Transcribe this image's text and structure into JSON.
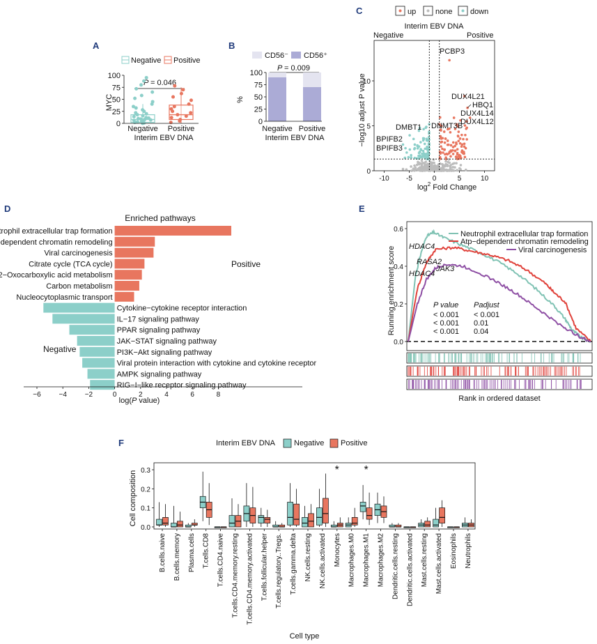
{
  "colors": {
    "teal": "#8ccfc9",
    "coral": "#e8765f",
    "lilac": "#ababd6",
    "pale": "#e4e4f0",
    "purple": "#8e4fa4",
    "gray": "#bcbcbc",
    "navy": "#1f3a7a"
  },
  "panels": {
    "A": "A",
    "B": "B",
    "C": "C",
    "D": "D",
    "E": "E",
    "F": "F"
  },
  "chart_data": [
    {
      "id": "A",
      "type": "box",
      "legend": [
        "Negative",
        "Positive"
      ],
      "ylabel": "MYC",
      "xlabel": "Interim EBV DNA",
      "yticks": [
        "0",
        "25",
        "50",
        "75",
        "100"
      ],
      "ylim": [
        0,
        100
      ],
      "categories": [
        "Negative",
        "Positive"
      ],
      "p_label": "P",
      "p_value": "= 0.046",
      "boxes": [
        {
          "q1": 2,
          "median": 8,
          "q3": 18,
          "lo": 0,
          "hi": 40,
          "points": [
            0,
            1,
            2,
            3,
            4,
            5,
            6,
            7,
            8,
            9,
            10,
            11,
            12,
            14,
            16,
            18,
            20,
            22,
            25,
            28,
            32,
            35,
            40,
            45,
            52,
            58,
            65,
            72,
            80,
            88,
            95
          ]
        },
        {
          "q1": 8,
          "median": 18,
          "q3": 38,
          "lo": 0,
          "hi": 75,
          "points": [
            2,
            5,
            8,
            12,
            15,
            18,
            22,
            25,
            30,
            35,
            40,
            48,
            55,
            62,
            70,
            78
          ]
        }
      ]
    },
    {
      "id": "B",
      "type": "stacked_bar",
      "legend": [
        "CD56⁻",
        "CD56⁺"
      ],
      "ylabel": "%",
      "xlabel": "Interim EBV DNA",
      "yticks": [
        "0",
        "25",
        "50",
        "75",
        "100"
      ],
      "ylim": [
        0,
        100
      ],
      "categories": [
        "Negative",
        "Positive"
      ],
      "series": [
        {
          "name": "CD56+",
          "values": [
            90,
            70
          ]
        },
        {
          "name": "CD56-",
          "values": [
            10,
            30
          ]
        }
      ],
      "p_label": "P",
      "p_value": "= 0.009"
    },
    {
      "id": "C",
      "type": "scatter",
      "legend": [
        "up",
        "none",
        "down"
      ],
      "title": "Interim EBV DNA",
      "left_label": "Negative",
      "right_label": "Positive",
      "ylabel": "−log10 adjust P value",
      "xlabel_main": "log",
      "xlabel_sup": "2",
      "xlabel_rest": " Fold Change",
      "xticks": [
        "-10",
        "-5",
        "0",
        "5",
        "10"
      ],
      "yticks": [
        "0",
        "5",
        "10"
      ],
      "xlim": [
        -12,
        12
      ],
      "ylim": [
        0,
        14.5
      ],
      "annotations": [
        "PCBP3",
        "DUX4L21",
        "HBQ1",
        "DUX4L14",
        "DUX4L12",
        "DMBT1",
        "DNMT3B",
        "BPIFB2",
        "BPIFB3"
      ]
    },
    {
      "id": "D",
      "type": "bar_horizontal",
      "title": "Enriched pathways",
      "xlabel": "log(P value)",
      "xlabel_pre": "log(",
      "xlabel_p": "P",
      "xlabel_post": " value)",
      "xticks": [
        "−6",
        "−4",
        "−2",
        "0",
        "2",
        "4",
        "6",
        "8"
      ],
      "xlim": [
        -6.3,
        9.5
      ],
      "group_positive": "Positive",
      "group_negative": "Negative",
      "categories": [
        "Neutrophil extracellular trap formation",
        "ATP−dependent chromatin remodeling",
        "Viral carcinogenesis",
        "Citrate cycle (TCA cycle)",
        "2−Oxocarboxylic acid metabolism",
        "Carbon metabolism",
        "Nucleocytoplasmic transport",
        "Cytokine−cytokine receptor interaction",
        "IL−17 signaling pathway",
        "PPAR signaling pathway",
        "JAK−STAT signaling pathway",
        "PI3K−Akt signaling pathway",
        "Viral protein interaction with cytokine and cytokine receptor",
        "AMPK signaling pathway",
        "RIG−I−like receptor signaling pathway"
      ],
      "values": [
        9.0,
        3.1,
        3.0,
        2.3,
        2.1,
        1.9,
        1.5,
        -5.5,
        -4.8,
        -3.5,
        -2.9,
        -2.7,
        -2.5,
        -2.1,
        -1.9
      ]
    },
    {
      "id": "E",
      "type": "line",
      "legend": [
        "Neutrophil extracellular trap formation",
        "Atp−dependent chromatin remodeling",
        "Viral carcinogenesis"
      ],
      "ylabel": "Running enrichment score",
      "xlabel": "Rank in ordered dataset",
      "yticks": [
        "0.0",
        "0.2",
        "0.4",
        "0.6"
      ],
      "ylim": [
        -0.06,
        0.66
      ],
      "genes": [
        "HDAC4",
        "RASA2",
        "HDAC4",
        "JAK3"
      ],
      "stats_header": [
        "P value",
        "Padjust"
      ],
      "stats_rows": [
        [
          "< 0.001",
          "< 0.001"
        ],
        [
          "< 0.001",
          "0.01"
        ],
        [
          "< 0.001",
          "0.04"
        ]
      ],
      "series": [
        {
          "name": "Neutrophil extracellular trap formation",
          "x": [
            0,
            0.04,
            0.07,
            0.1,
            0.14,
            0.2,
            0.3,
            0.4,
            0.5,
            0.6,
            0.7,
            0.8,
            0.86,
            0.9,
            0.95,
            1.0
          ],
          "values": [
            0,
            0.35,
            0.47,
            0.56,
            0.58,
            0.55,
            0.51,
            0.47,
            0.42,
            0.36,
            0.28,
            0.19,
            0.12,
            0.06,
            0.02,
            0
          ]
        },
        {
          "name": "Atp−dependent chromatin remodeling",
          "x": [
            0,
            0.05,
            0.1,
            0.15,
            0.25,
            0.35,
            0.45,
            0.55,
            0.65,
            0.75,
            0.8,
            0.86,
            0.92,
            1.0
          ],
          "values": [
            0,
            0.28,
            0.42,
            0.49,
            0.5,
            0.48,
            0.46,
            0.43,
            0.38,
            0.31,
            0.26,
            0.21,
            0.07,
            0
          ]
        },
        {
          "name": "Viral carcinogenesis",
          "x": [
            0,
            0.05,
            0.1,
            0.15,
            0.2,
            0.3,
            0.4,
            0.5,
            0.6,
            0.7,
            0.8,
            0.88,
            0.95,
            1.0
          ],
          "values": [
            0,
            0.2,
            0.33,
            0.39,
            0.41,
            0.4,
            0.36,
            0.31,
            0.25,
            0.18,
            0.11,
            0.06,
            0.02,
            0
          ]
        }
      ]
    },
    {
      "id": "F",
      "type": "box",
      "legend_title": "Interim EBV DNA",
      "legend": [
        "Negative",
        "Positive"
      ],
      "ylabel": "Cell composition",
      "xlabel": "Cell type",
      "yticks": [
        "0.0",
        "0.1",
        "0.2",
        "0.3"
      ],
      "ylim": [
        0,
        0.33
      ],
      "significant": [
        "Monocytes",
        "Macrophages.M1"
      ],
      "sig_marker": "*",
      "categories": [
        "B.cells.naive",
        "B.cells.memory",
        "Plasma.cells",
        "T.cells.CD8",
        "T.cells.CD4.naive",
        "T.cells.CD4.memory.resting",
        "T.cells.CD4.memory.activated",
        "T.cells.follicular.helper",
        "T.cells.regulatory..Tregs.",
        "T.cells.gamma.delta",
        "NK.cells.resting",
        "NK.cells.activated",
        "Monocytes",
        "Macrophages.M0",
        "Macrophages.M1",
        "Macrophages.M2",
        "Dendritic.cells.resting",
        "Dendritic.cells.activated",
        "Mast.cells.resting",
        "Mast.cells.activated",
        "Eosinophils",
        "Neutrophils"
      ],
      "series": [
        {
          "name": "Negative",
          "boxes": [
            [
              0.01,
              0.04,
              0.01,
              0.0,
              0.13
            ],
            [
              0.0,
              0.02,
              0.0,
              0.0,
              0.11
            ],
            [
              0.0,
              0.01,
              0.0,
              0.0,
              0.02
            ],
            [
              0.1,
              0.16,
              0.13,
              0.03,
              0.29
            ],
            [
              0.0,
              0.0,
              0.0,
              0.0,
              0.0
            ],
            [
              0.0,
              0.06,
              0.02,
              0.0,
              0.15
            ],
            [
              0.03,
              0.11,
              0.07,
              0.0,
              0.23
            ],
            [
              0.02,
              0.06,
              0.05,
              0.0,
              0.1
            ],
            [
              0.0,
              0.01,
              0.0,
              0.0,
              0.03
            ],
            [
              0.01,
              0.13,
              0.05,
              0.0,
              0.23
            ],
            [
              0.0,
              0.05,
              0.02,
              0.0,
              0.11
            ],
            [
              0.01,
              0.1,
              0.05,
              0.0,
              0.2
            ],
            [
              0.0,
              0.01,
              0.0,
              0.0,
              0.03
            ],
            [
              0.0,
              0.02,
              0.01,
              0.0,
              0.05
            ],
            [
              0.08,
              0.13,
              0.11,
              0.04,
              0.22
            ],
            [
              0.06,
              0.12,
              0.09,
              0.02,
              0.18
            ],
            [
              0.0,
              0.01,
              0.0,
              0.0,
              0.02
            ],
            [
              0.0,
              0.0,
              0.0,
              0.0,
              0.0
            ],
            [
              0.0,
              0.02,
              0.01,
              0.0,
              0.04
            ],
            [
              0.0,
              0.04,
              0.01,
              0.0,
              0.1
            ],
            [
              0.0,
              0.0,
              0.0,
              0.0,
              0.0
            ],
            [
              0.0,
              0.02,
              0.01,
              0.0,
              0.05
            ]
          ]
        },
        {
          "name": "Positive",
          "boxes": [
            [
              0.01,
              0.05,
              0.02,
              0.0,
              0.12
            ],
            [
              0.0,
              0.03,
              0.01,
              0.0,
              0.08
            ],
            [
              0.01,
              0.02,
              0.01,
              0.0,
              0.04
            ],
            [
              0.05,
              0.13,
              0.09,
              0.01,
              0.23
            ],
            [
              0.0,
              0.0,
              0.0,
              0.0,
              0.0
            ],
            [
              0.0,
              0.06,
              0.03,
              0.0,
              0.12
            ],
            [
              0.02,
              0.1,
              0.06,
              0.0,
              0.21
            ],
            [
              0.02,
              0.05,
              0.04,
              0.0,
              0.09
            ],
            [
              0.0,
              0.01,
              0.0,
              0.0,
              0.02
            ],
            [
              0.01,
              0.12,
              0.04,
              0.0,
              0.2
            ],
            [
              0.0,
              0.07,
              0.03,
              0.0,
              0.12
            ],
            [
              0.02,
              0.15,
              0.07,
              0.0,
              0.28
            ],
            [
              0.0,
              0.02,
              0.01,
              0.0,
              0.05
            ],
            [
              0.01,
              0.05,
              0.02,
              0.0,
              0.1
            ],
            [
              0.04,
              0.1,
              0.06,
              0.01,
              0.18
            ],
            [
              0.05,
              0.11,
              0.08,
              0.02,
              0.16
            ],
            [
              0.0,
              0.01,
              0.0,
              0.0,
              0.02
            ],
            [
              0.0,
              0.0,
              0.0,
              0.0,
              0.0
            ],
            [
              0.0,
              0.03,
              0.01,
              0.0,
              0.05
            ],
            [
              0.02,
              0.1,
              0.05,
              0.0,
              0.14
            ],
            [
              0.0,
              0.0,
              0.0,
              0.0,
              0.0
            ],
            [
              0.0,
              0.02,
              0.01,
              0.0,
              0.04
            ]
          ]
        }
      ]
    }
  ]
}
